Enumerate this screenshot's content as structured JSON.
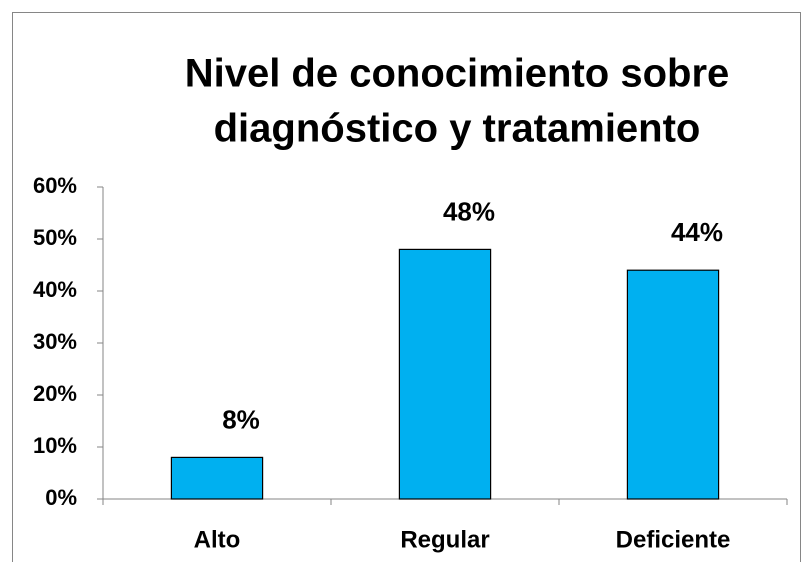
{
  "chart_data": {
    "type": "bar",
    "title": [
      "Nivel de conocimiento sobre",
      "diagnóstico y tratamiento"
    ],
    "categories": [
      "Alto",
      "Regular",
      "Deficiente"
    ],
    "values": [
      8,
      48,
      44
    ],
    "value_labels": [
      "8%",
      "48%",
      "44%"
    ],
    "color": "#00b0f0",
    "ylim": [
      0,
      60
    ],
    "yticks": [
      {
        "value": 0,
        "label": "0%"
      },
      {
        "value": 10,
        "label": "10%"
      },
      {
        "value": 20,
        "label": "20%"
      },
      {
        "value": 30,
        "label": "30%"
      },
      {
        "value": 40,
        "label": "40%"
      },
      {
        "value": 50,
        "label": "50%"
      },
      {
        "value": 60,
        "label": "60%"
      }
    ],
    "grid": false
  }
}
